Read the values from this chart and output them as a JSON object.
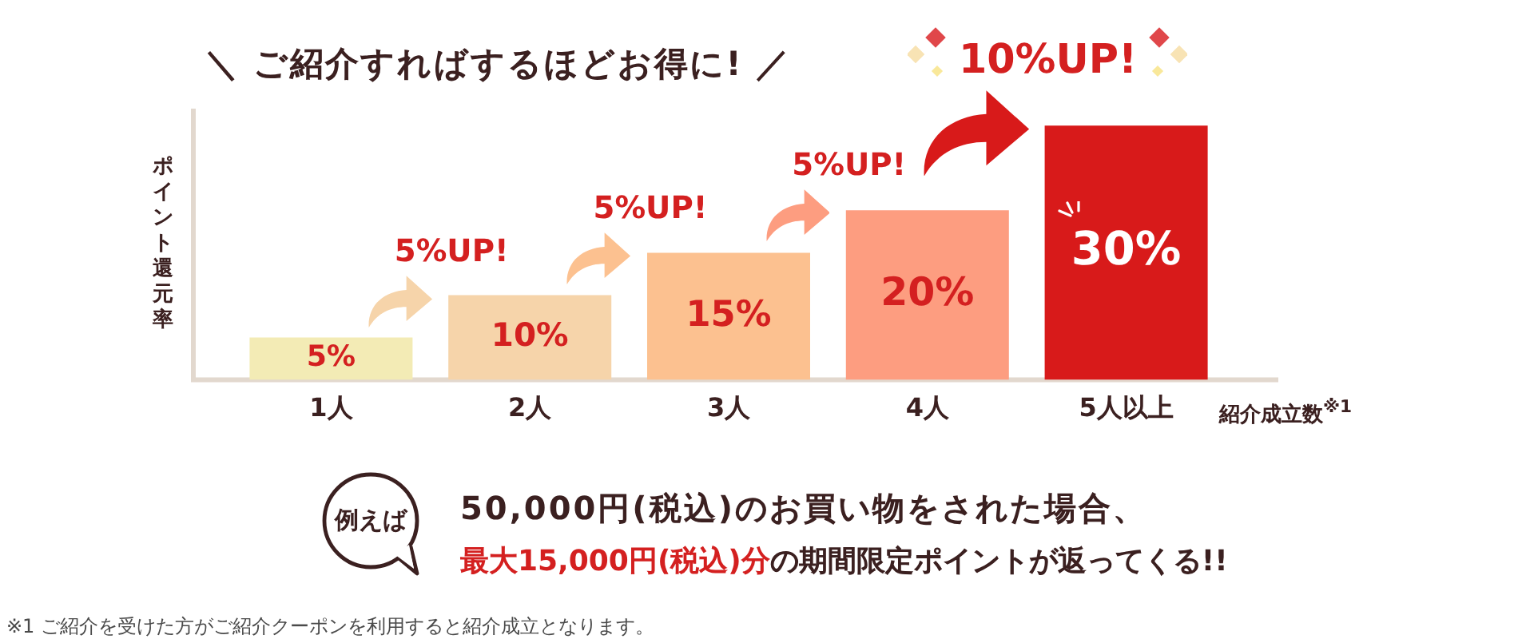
{
  "chart_data": {
    "type": "bar",
    "title": "＼ ご紹介すればするほどお得に! ／",
    "ylabel": "ポイント還元率",
    "xlabel": "紹介成立数$^{※1}$",
    "categories": [
      "1人",
      "2人",
      "3人",
      "4人",
      "5人以上"
    ],
    "values": [
      5,
      10,
      15,
      20,
      30
    ],
    "colors": [
      "#f3ebb5",
      "#f6d4aa",
      "#fcc190",
      "#fd9d80",
      "#d81a1a"
    ],
    "value_labels": [
      "5%",
      "10%",
      "15%",
      "20%",
      "30%"
    ],
    "ylim": [
      0,
      32
    ],
    "tick_labels": "x",
    "annotations": [
      {
        "text": "5%UP!",
        "x": "2人",
        "y": 10
      },
      {
        "text": "5%UP!",
        "x": "3人",
        "y": 15
      },
      {
        "text": "5%UP!",
        "x": "4人",
        "y": 20
      },
      {
        "text": "10%UP!",
        "x": "5人以上",
        "y": 30
      },
      "例えば",
      "50,000円(税込)のお買い物をされた場合、",
      "最大15,000円(税込)分",
      "の期間限定ポイントが返ってくる!!",
      "※1 ご紹介を受けた方がご紹介クーポンを利用すると紹介成立となります。"
    ]
  }
}
